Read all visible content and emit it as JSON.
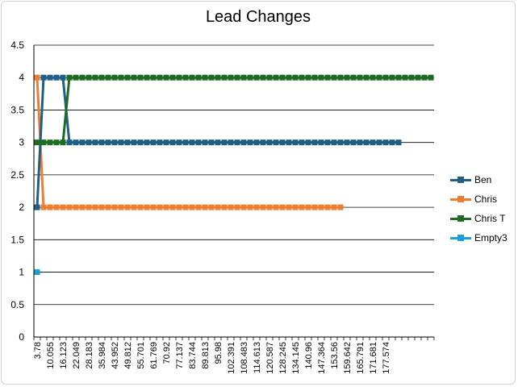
{
  "chart_data": {
    "type": "line",
    "title": "Lead Changes",
    "xlabel": "",
    "ylabel": "",
    "ylim": [
      0,
      4.5
    ],
    "y_ticks": [
      "0",
      "0.5",
      "1",
      "1.5",
      "2",
      "2.5",
      "3",
      "3.5",
      "4",
      "4.5"
    ],
    "x_tick_labels": [
      "3.78",
      "10.055",
      "16.123",
      "22.049",
      "28.183",
      "35.984",
      "43.952",
      "49.812",
      "55.701",
      "61.769",
      "70.92",
      "77.137",
      "83.744",
      "89.813",
      "95.98",
      "102.391",
      "108.483",
      "114.613",
      "120.587",
      "128.245",
      "134.145",
      "140.96",
      "147.364",
      "153.56",
      "159.642",
      "165.791",
      "171.681",
      "177.574"
    ],
    "category_count": 62,
    "legend_position": "right",
    "grid": "horizontal",
    "series": [
      {
        "name": "Ben",
        "color": "#1f5f86",
        "values": [
          2,
          4,
          4,
          4,
          4,
          3,
          3,
          3,
          3,
          3,
          3,
          3,
          3,
          3,
          3,
          3,
          3,
          3,
          3,
          3,
          3,
          3,
          3,
          3,
          3,
          3,
          3,
          3,
          3,
          3,
          3,
          3,
          3,
          3,
          3,
          3,
          3,
          3,
          3,
          3,
          3,
          3,
          3,
          3,
          3,
          3,
          3,
          3,
          3,
          3,
          3,
          3,
          3,
          3,
          3,
          3,
          3
        ]
      },
      {
        "name": "Chris",
        "color": "#ed7d31",
        "values": [
          4,
          2,
          2,
          2,
          2,
          2,
          2,
          2,
          2,
          2,
          2,
          2,
          2,
          2,
          2,
          2,
          2,
          2,
          2,
          2,
          2,
          2,
          2,
          2,
          2,
          2,
          2,
          2,
          2,
          2,
          2,
          2,
          2,
          2,
          2,
          2,
          2,
          2,
          2,
          2,
          2,
          2,
          2,
          2,
          2,
          2,
          2,
          2
        ]
      },
      {
        "name": "Chris T",
        "color": "#1e6b22",
        "values": [
          3,
          3,
          3,
          3,
          3,
          4,
          4,
          4,
          4,
          4,
          4,
          4,
          4,
          4,
          4,
          4,
          4,
          4,
          4,
          4,
          4,
          4,
          4,
          4,
          4,
          4,
          4,
          4,
          4,
          4,
          4,
          4,
          4,
          4,
          4,
          4,
          4,
          4,
          4,
          4,
          4,
          4,
          4,
          4,
          4,
          4,
          4,
          4,
          4,
          4,
          4,
          4,
          4,
          4,
          4,
          4,
          4,
          4,
          4,
          4,
          4,
          4
        ]
      },
      {
        "name": "Empty3",
        "color": "#1aa0d8",
        "values": [
          1
        ]
      }
    ]
  }
}
